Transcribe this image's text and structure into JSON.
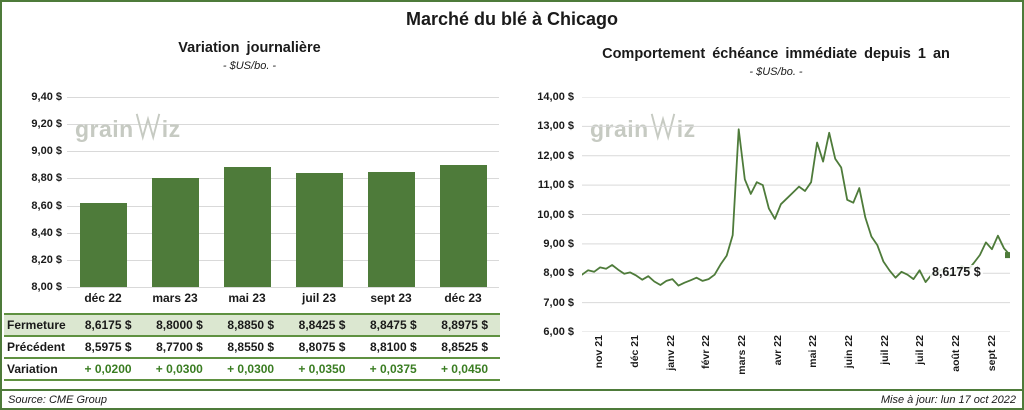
{
  "title": "Marché du blé à Chicago",
  "watermark": {
    "pre": "grain",
    "post": "iz"
  },
  "footer": {
    "source": "Source: CME Group",
    "updated": "Mise à jour: lun 17 oct 2022"
  },
  "colors": {
    "green": "#4e7b3a",
    "table_line_green": "#5f9141",
    "highlight_row": "#dbe7d0",
    "variation_text": "#3a7d22",
    "gridline": "#d9d9d9"
  },
  "chart_data": [
    {
      "type": "bar",
      "title": "Variation journalière",
      "subtitle": "- $US/bo. -",
      "categories": [
        "déc 22",
        "mars 23",
        "mai 23",
        "juil 23",
        "sept 23",
        "déc 23"
      ],
      "values": [
        8.6175,
        8.8,
        8.885,
        8.8425,
        8.8475,
        8.8975
      ],
      "ylim": [
        8.0,
        9.4
      ],
      "ytick_labels": [
        "9,40 $",
        "9,20 $",
        "9,00 $",
        "8,80 $",
        "8,60 $",
        "8,40 $",
        "8,20 $",
        "8,00 $"
      ],
      "bar_color": "#4e7b3a",
      "grid": true,
      "legend": "none"
    },
    {
      "type": "line",
      "title": "Comportement échéance immédiate depuis 1 an",
      "subtitle": "- $US/bo. -",
      "x_labels": [
        "nov 21",
        "déc 21",
        "janv 22",
        "févr 22",
        "mars 22",
        "avr 22",
        "mai 22",
        "juin 22",
        "juil 22",
        "juil 22",
        "août 22",
        "sept 22"
      ],
      "ylim": [
        6.0,
        14.0
      ],
      "ytick_labels": [
        "14,00 $",
        "13,00 $",
        "12,00 $",
        "11,00 $",
        "10,00 $",
        "9,00 $",
        "8,00 $",
        "7,00 $",
        "6,00 $"
      ],
      "line_color": "#4e7b3a",
      "end_label": "8,6175 $",
      "grid": true,
      "legend": "none",
      "values": [
        7.95,
        8.1,
        8.05,
        8.2,
        8.15,
        8.28,
        8.12,
        7.98,
        8.03,
        7.92,
        7.78,
        7.9,
        7.72,
        7.6,
        7.74,
        7.8,
        7.58,
        7.68,
        7.76,
        7.85,
        7.74,
        7.8,
        7.95,
        8.3,
        8.6,
        9.3,
        12.9,
        11.2,
        10.7,
        11.1,
        11.0,
        10.2,
        9.85,
        10.35,
        10.55,
        10.75,
        10.95,
        10.8,
        11.1,
        12.45,
        11.8,
        12.78,
        11.9,
        11.6,
        10.5,
        10.4,
        10.9,
        9.9,
        9.25,
        8.95,
        8.4,
        8.1,
        7.85,
        8.05,
        7.95,
        7.8,
        8.1,
        7.7,
        7.95,
        8.05,
        8.15,
        7.9,
        8.05,
        8.25,
        8.1,
        8.35,
        8.62,
        9.05,
        8.82,
        9.28,
        8.85,
        8.6175
      ]
    }
  ],
  "table": {
    "rows": [
      {
        "label": "Fermeture",
        "values": [
          "8,6175  $",
          "8,8000  $",
          "8,8850  $",
          "8,8425  $",
          "8,8475  $",
          "8,8975  $"
        ],
        "highlight": true,
        "variation": false
      },
      {
        "label": "Précédent",
        "values": [
          "8,5975  $",
          "8,7700  $",
          "8,8550  $",
          "8,8075  $",
          "8,8100  $",
          "8,8525  $"
        ],
        "highlight": false,
        "variation": false
      },
      {
        "label": "Variation",
        "values": [
          "+ 0,0200",
          "+ 0,0300",
          "+ 0,0300",
          "+ 0,0350",
          "+ 0,0375",
          "+ 0,0450"
        ],
        "highlight": false,
        "variation": true
      }
    ]
  }
}
